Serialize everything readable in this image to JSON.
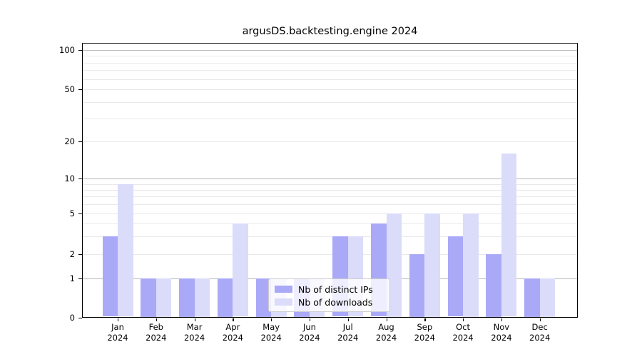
{
  "chart_data": {
    "type": "bar",
    "title": "argusDS.backtesting.engine 2024",
    "categories": [
      "Jan",
      "Feb",
      "Mar",
      "Apr",
      "May",
      "Jun",
      "Jul",
      "Aug",
      "Sep",
      "Oct",
      "Nov",
      "Dec"
    ],
    "category_year": "2024",
    "series": [
      {
        "name": "Nb of distinct IPs",
        "color": "#a9a9f8",
        "values": [
          3,
          1,
          1,
          1,
          1,
          1,
          3,
          4,
          2,
          3,
          2,
          1
        ]
      },
      {
        "name": "Nb of downloads",
        "color": "#dbdbfa",
        "values": [
          9,
          1,
          1,
          4,
          1,
          1,
          3,
          5,
          5,
          5,
          16,
          1
        ]
      }
    ],
    "xlabel": "",
    "ylabel": "",
    "yscale": "symlog",
    "ylim": [
      0,
      113
    ],
    "yticks": [
      0,
      1,
      2,
      5,
      10,
      20,
      50,
      100
    ],
    "grid_major": [
      1,
      10,
      100
    ],
    "grid_minor": [
      2,
      3,
      4,
      5,
      6,
      7,
      8,
      9,
      20,
      30,
      40,
      50,
      60,
      70,
      80,
      90
    ],
    "grid": "on",
    "legend_position": "lower center"
  }
}
